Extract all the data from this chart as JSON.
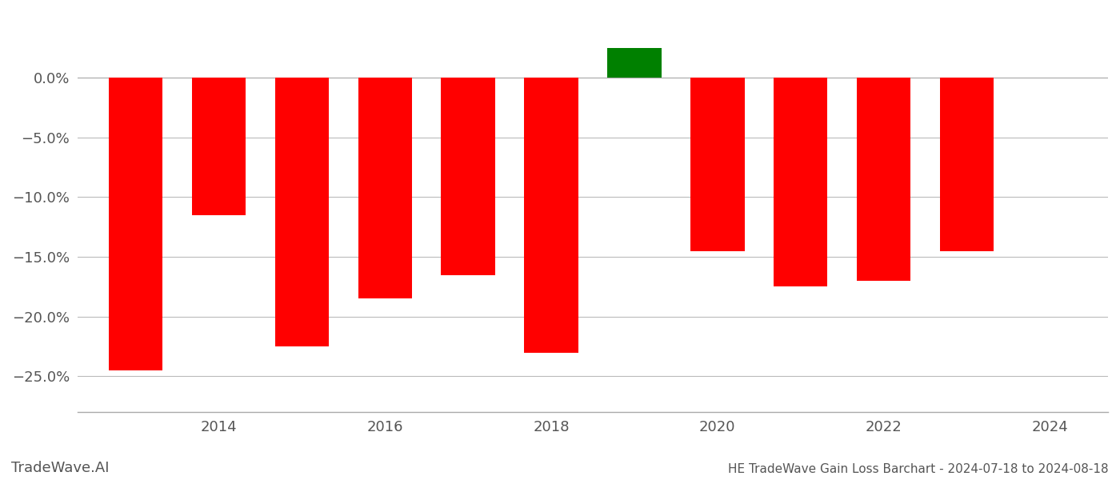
{
  "years": [
    2013,
    2014,
    2015,
    2016,
    2017,
    2018,
    2019,
    2020,
    2021,
    2022,
    2023
  ],
  "values": [
    -0.245,
    -0.115,
    -0.225,
    -0.185,
    -0.165,
    -0.23,
    0.025,
    -0.145,
    -0.175,
    -0.17,
    -0.145
  ],
  "colors": [
    "#ff0000",
    "#ff0000",
    "#ff0000",
    "#ff0000",
    "#ff0000",
    "#ff0000",
    "#008000",
    "#ff0000",
    "#ff0000",
    "#ff0000",
    "#ff0000"
  ],
  "title": "HE TradeWave Gain Loss Barchart - 2024-07-18 to 2024-08-18",
  "watermark": "TradeWave.AI",
  "ylim": [
    -0.28,
    0.055
  ],
  "yticks": [
    0.0,
    -0.05,
    -0.1,
    -0.15,
    -0.2,
    -0.25
  ],
  "background_color": "#ffffff",
  "grid_color": "#bbbbbb",
  "bar_width": 0.65,
  "xlim": [
    2012.3,
    2024.7
  ],
  "xtick_positions": [
    2014,
    2016,
    2018,
    2020,
    2022,
    2024
  ]
}
